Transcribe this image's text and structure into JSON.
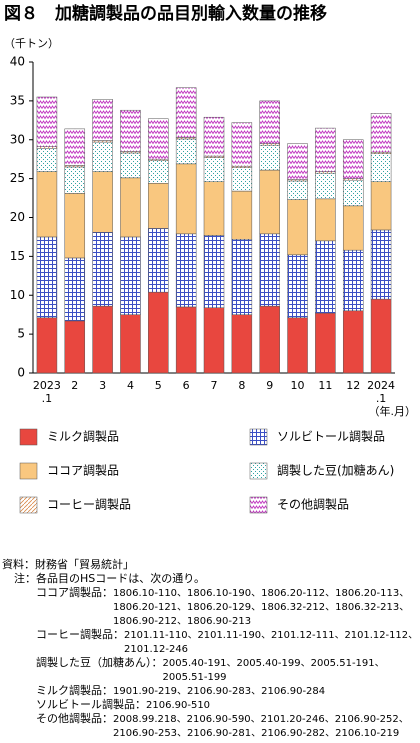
{
  "chart_data": {
    "type": "stacked-bar",
    "title": "図８　加糖調製品の品目別輸入数量の推移",
    "y_label": "（千トン）",
    "x_label": "（年.月）",
    "categories": [
      "2023\n.1",
      "2",
      "3",
      "4",
      "5",
      "6",
      "7",
      "8",
      "9",
      "10",
      "11",
      "12",
      "2024\n.1"
    ],
    "ylim": [
      0,
      40
    ],
    "yticks": [
      0,
      5,
      10,
      15,
      20,
      25,
      30,
      35,
      40
    ],
    "grid": false,
    "series": [
      {
        "name": "ミルク調製品",
        "color": "#e8473f",
        "pattern": "solid",
        "values": [
          7.1,
          6.7,
          8.6,
          7.5,
          10.4,
          8.5,
          8.4,
          7.5,
          8.6,
          7.1,
          7.7,
          8.0,
          9.5
        ]
      },
      {
        "name": "ソルビトール調製品",
        "color": "#3b4fc4",
        "pattern": "grid",
        "values": [
          10.4,
          8.1,
          9.5,
          10.0,
          8.2,
          9.4,
          9.3,
          9.7,
          9.3,
          8.1,
          9.3,
          7.8,
          8.9
        ]
      },
      {
        "name": "ココア調製品",
        "color": "#f9c77f",
        "pattern": "solid",
        "values": [
          8.4,
          8.3,
          7.8,
          7.6,
          5.8,
          9.0,
          6.9,
          6.2,
          8.2,
          7.1,
          5.4,
          5.7,
          6.2
        ]
      },
      {
        "name": "調製した豆(加糖あん)",
        "color": "#2fa3a3",
        "pattern": "dots",
        "values": [
          3.0,
          3.4,
          3.8,
          3.2,
          2.9,
          3.2,
          3.1,
          3.0,
          3.2,
          2.4,
          3.3,
          3.3,
          3.6
        ]
      },
      {
        "name": "コーヒー調製品",
        "color": "#d9894a",
        "pattern": "diagonal",
        "values": [
          0.2,
          0.2,
          0.2,
          0.2,
          0.2,
          0.2,
          0.2,
          0.2,
          0.2,
          0.2,
          0.2,
          0.2,
          0.2
        ]
      },
      {
        "name": "その他調製品",
        "color": "#c034c0",
        "pattern": "zigzag",
        "values": [
          6.4,
          4.7,
          5.3,
          5.3,
          5.2,
          6.4,
          5.0,
          5.6,
          5.5,
          4.6,
          5.6,
          5.0,
          5.0
        ]
      }
    ]
  },
  "notes": {
    "source": "資料：財務省「貿易統計」",
    "heading": "注：各品目のHSコードは、次の通り。",
    "items": [
      {
        "label": "ココア調製品：",
        "lines": [
          "1806.10-110、1806.10-190、1806.20-112、1806.20-113、",
          "1806.20-121、1806.20-129、1806.32-212、1806.32-213、",
          "1806.90-212、1806.90-213"
        ]
      },
      {
        "label": "コーヒー調製品：",
        "lines": [
          "2101.11-110、2101.11-190、2101.12-111、2101.12-112、",
          "2101.12-246"
        ]
      },
      {
        "label": "調製した豆（加糖あん）：",
        "lines": [
          "2005.40-191、2005.40-199、2005.51-191、",
          "2005.51-199"
        ]
      },
      {
        "label": "ミルク調製品：",
        "lines": [
          "1901.90-219、2106.90-283、2106.90-284"
        ]
      },
      {
        "label": "ソルビトール調製品：",
        "lines": [
          "2106.90-510"
        ]
      },
      {
        "label": "その他調製品：",
        "lines": [
          "2008.99.218、2106.90-590、2101.20-246、2106.90-252、",
          "2106.90-253、2106.90-281、2106.90-282、2106.10-219"
        ]
      }
    ]
  }
}
